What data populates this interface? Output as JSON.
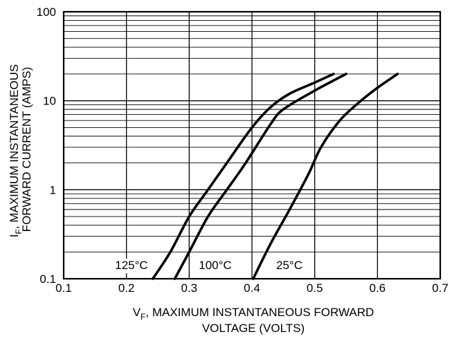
{
  "chart_data": {
    "type": "line",
    "xlim": [
      0.1,
      0.7
    ],
    "ylim": [
      0.1,
      100
    ],
    "yscale": "log",
    "grid": true,
    "x_ticks": [
      "0.1",
      "0.2",
      "0.3",
      "0.4",
      "0.5",
      "0.6",
      "0.7"
    ],
    "y_ticks": [
      "0.1",
      "1",
      "10",
      "100"
    ],
    "ylabel_line1_main": "I",
    "ylabel_line1_sub": "F",
    "ylabel_line1_rest": ", MAXIMUM INSTANTANEOUS",
    "ylabel_line2": "FORWARD CURRENT (AMPS)",
    "xlabel_line1_main": "V",
    "xlabel_line1_sub": "F",
    "xlabel_line1_rest": ", MAXIMUM INSTANTANEOUS FORWARD",
    "xlabel_line2": "VOLTAGE (VOLTS)",
    "series": [
      {
        "name": "125°C",
        "points": [
          [
            0.242,
            0.1
          ],
          [
            0.27,
            0.2
          ],
          [
            0.3,
            0.5
          ],
          [
            0.33,
            1.0
          ],
          [
            0.36,
            2.0
          ],
          [
            0.4,
            5.0
          ],
          [
            0.43,
            8.5
          ],
          [
            0.46,
            12
          ],
          [
            0.5,
            16
          ],
          [
            0.53,
            20
          ]
        ]
      },
      {
        "name": "100°C",
        "points": [
          [
            0.277,
            0.1
          ],
          [
            0.3,
            0.2
          ],
          [
            0.33,
            0.5
          ],
          [
            0.36,
            1.0
          ],
          [
            0.39,
            2.0
          ],
          [
            0.43,
            5.5
          ],
          [
            0.45,
            8.0
          ],
          [
            0.5,
            13
          ],
          [
            0.55,
            20
          ]
        ]
      },
      {
        "name": "25°C",
        "points": [
          [
            0.402,
            0.1
          ],
          [
            0.43,
            0.25
          ],
          [
            0.46,
            0.6
          ],
          [
            0.49,
            1.5
          ],
          [
            0.51,
            3.0
          ],
          [
            0.54,
            6.0
          ],
          [
            0.57,
            9.5
          ],
          [
            0.6,
            14
          ],
          [
            0.632,
            20
          ]
        ]
      }
    ]
  }
}
